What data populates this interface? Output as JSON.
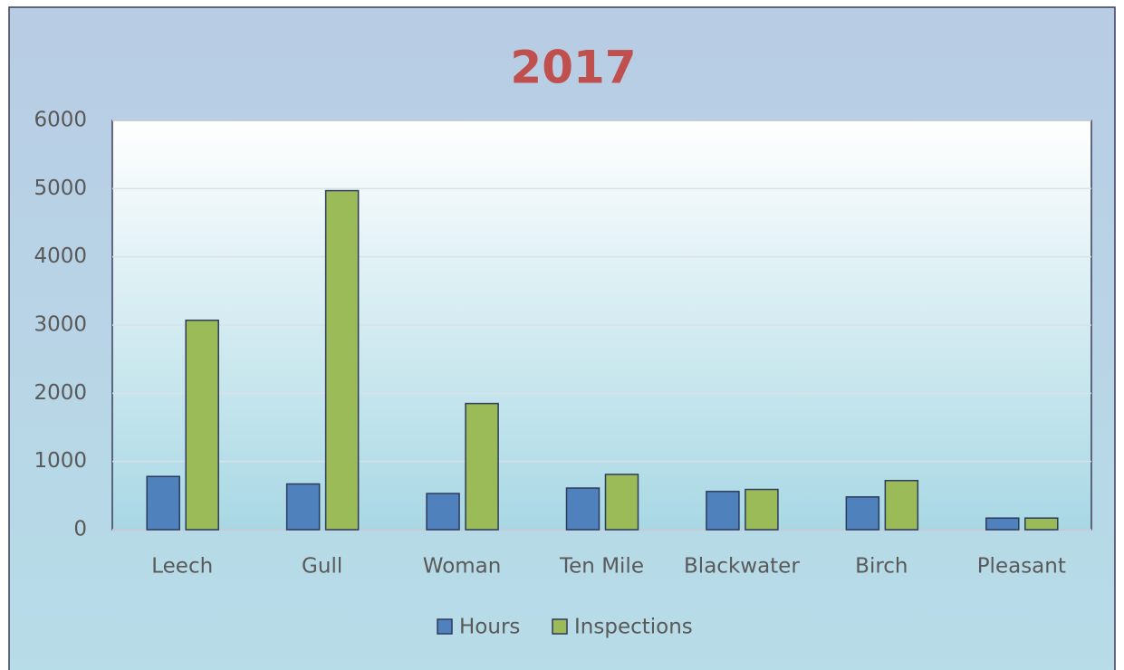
{
  "chart_data": {
    "type": "bar",
    "title": "2017",
    "categories": [
      "Leech",
      "Gull",
      "Woman",
      "Ten Mile",
      "Blackwater",
      "Birch",
      "Pleasant"
    ],
    "series": [
      {
        "name": "Hours",
        "color": "#4f81bd",
        "values": [
          780,
          670,
          530,
          610,
          560,
          480,
          170
        ]
      },
      {
        "name": "Inspections",
        "color": "#9bbb59",
        "values": [
          3070,
          4970,
          1850,
          810,
          590,
          720,
          170
        ]
      }
    ],
    "ylim": [
      0,
      6000
    ],
    "yticks": [
      0,
      1000,
      2000,
      3000,
      4000,
      5000,
      6000
    ],
    "grid": true,
    "legend": "bottom"
  }
}
